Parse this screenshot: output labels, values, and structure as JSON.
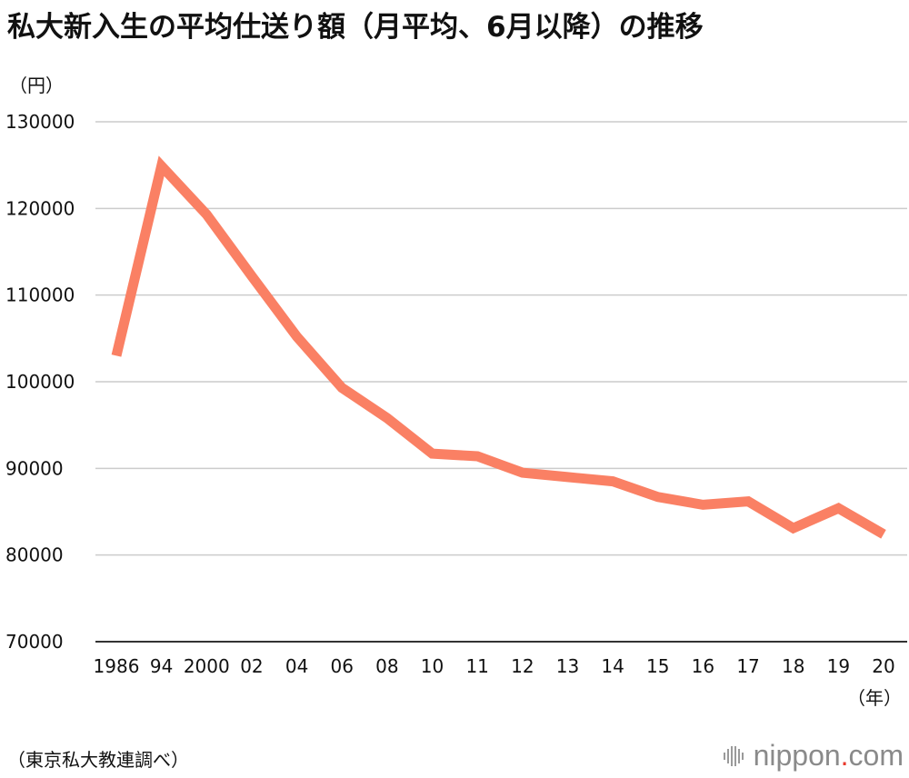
{
  "title": "私大新入生の平均仕送り額（月平均、6月以降）の推移",
  "source": "（東京私大教連調べ）",
  "logo": {
    "text": "nippon",
    "dot": ".",
    "suffix": "com"
  },
  "colors": {
    "line": "#fa8064",
    "grid": "#cccccc",
    "axis": "#333333",
    "text": "#111111"
  },
  "chart_data": {
    "type": "line",
    "title": "私大新入生の平均仕送り額（月平均、6月以降）の推移",
    "xlabel": "（年）",
    "ylabel": "（円）",
    "ylim": [
      70000,
      130000
    ],
    "yticks": [
      70000,
      80000,
      90000,
      100000,
      110000,
      120000,
      130000
    ],
    "grid": true,
    "categories": [
      "1986",
      "94",
      "2000",
      "02",
      "04",
      "06",
      "08",
      "10",
      "11",
      "12",
      "13",
      "14",
      "15",
      "16",
      "17",
      "18",
      "19",
      "20"
    ],
    "series": [
      {
        "name": "平均仕送り額",
        "values": [
          103000,
          124900,
          119300,
          112200,
          105200,
          99300,
          95800,
          91700,
          91400,
          89500,
          89000,
          88500,
          86700,
          85800,
          86200,
          83100,
          85400,
          82400
        ]
      }
    ]
  }
}
